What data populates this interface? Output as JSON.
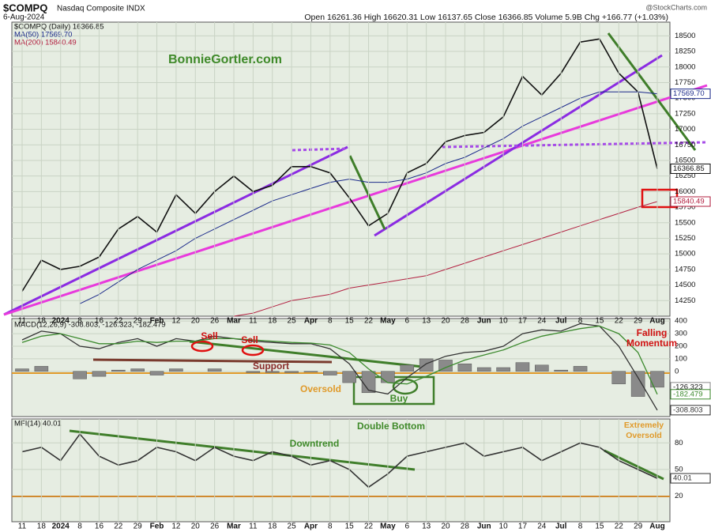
{
  "header": {
    "symbol": "$COMPQ",
    "name": "Nasdaq Composite INDX",
    "date": "6-Aug-2024",
    "quote": "Open 16261.36  High 16620.31  Low 16137.65  Close 16366.85  Volume 5.9B  Chg +166.77 (+1.03%)",
    "watermark": "@StockCharts.com"
  },
  "chart_data": [
    {
      "type": "line",
      "title": "BonnieGortler.com",
      "categories": [
        "11",
        "18",
        "2024",
        "8",
        "16",
        "22",
        "29",
        "Feb",
        "12",
        "20",
        "26",
        "Mar",
        "11",
        "18",
        "25",
        "Apr",
        "8",
        "15",
        "22",
        "May",
        "6",
        "13",
        "20",
        "28",
        "Jun",
        "10",
        "17",
        "24",
        "Jul",
        "8",
        "15",
        "22",
        "29",
        "Aug"
      ],
      "series": [
        {
          "name": "$COMPQ (Daily) 16366.85",
          "color": "#111111",
          "last_label": "16366.85",
          "values": [
            14400,
            14900,
            14750,
            14800,
            14950,
            15400,
            15600,
            15350,
            15950,
            15650,
            16000,
            16250,
            16000,
            16100,
            16400,
            16400,
            16300,
            15900,
            15450,
            15650,
            16300,
            16450,
            16800,
            16900,
            16950,
            17200,
            17850,
            17550,
            17900,
            18400,
            18450,
            17900,
            17600,
            16366.85
          ]
        },
        {
          "name": "MA(50) 17569.70",
          "color": "#1b2a8a",
          "last_label": "17569.70",
          "values": [
            null,
            null,
            null,
            14200,
            14350,
            14550,
            14750,
            14900,
            15050,
            15250,
            15400,
            15550,
            15700,
            15850,
            15950,
            16050,
            16150,
            16200,
            16150,
            16150,
            16200,
            16300,
            16450,
            16550,
            16700,
            16850,
            17050,
            17200,
            17350,
            17500,
            17600,
            17600,
            17600,
            17570
          ]
        },
        {
          "name": "MA(200) 15840.49",
          "color": "#b22040",
          "last_label": "15840.49",
          "values": [
            null,
            null,
            null,
            null,
            null,
            null,
            null,
            null,
            null,
            null,
            null,
            14000,
            14050,
            14150,
            14250,
            14300,
            14350,
            14450,
            14500,
            14550,
            14600,
            14650,
            14750,
            14850,
            14950,
            15050,
            15150,
            15250,
            15350,
            15450,
            15550,
            15650,
            15750,
            15840
          ]
        }
      ],
      "ylim": [
        14000,
        18720
      ],
      "yticks": [
        14250,
        14500,
        14750,
        15000,
        15250,
        15500,
        15750,
        16000,
        16250,
        16500,
        16750,
        17000,
        17250,
        17500,
        17750,
        18000,
        18250,
        18500
      ],
      "grid": true
    },
    {
      "type": "macd",
      "legend": "MACD(12,26,9) -308.803, -126.323, -182.479",
      "series": [
        {
          "name": "MACD",
          "color": "#333333",
          "last_label": "-308.803",
          "values": [
            250,
            320,
            300,
            200,
            180,
            230,
            260,
            200,
            260,
            240,
            280,
            260,
            240,
            230,
            220,
            220,
            180,
            60,
            -150,
            -180,
            -50,
            60,
            120,
            150,
            160,
            200,
            300,
            330,
            320,
            380,
            360,
            200,
            -50,
            -308.8
          ]
        },
        {
          "name": "Signal",
          "color": "#3c8a2e",
          "last_label": "-182.479",
          "values": [
            230,
            280,
            300,
            260,
            220,
            220,
            240,
            230,
            240,
            240,
            260,
            260,
            250,
            240,
            230,
            225,
            210,
            150,
            20,
            -90,
            -100,
            -40,
            30,
            90,
            130,
            170,
            230,
            280,
            310,
            340,
            360,
            300,
            150,
            -182.5
          ]
        }
      ],
      "histogram": {
        "color": "#8a8a8a",
        "last_label": "-126.323",
        "values": [
          20,
          40,
          0,
          -60,
          -40,
          10,
          20,
          -30,
          20,
          0,
          20,
          0,
          -10,
          -10,
          -10,
          -5,
          -30,
          -90,
          -170,
          -90,
          50,
          100,
          90,
          60,
          30,
          30,
          70,
          50,
          10,
          40,
          0,
          -100,
          -200,
          -126.3
        ]
      },
      "ylim": [
        -360,
        420
      ],
      "yticks": [
        0,
        100,
        200,
        300,
        400
      ],
      "grid": true,
      "annotations": [
        "Sell",
        "Sell",
        "Support",
        "Oversold",
        "Buy",
        "Falling Momentum"
      ]
    },
    {
      "type": "line",
      "series": [
        {
          "name": "MFI(14) 40.01",
          "color": "#333333",
          "last_label": "40.01",
          "values": [
            70,
            75,
            60,
            90,
            65,
            55,
            60,
            75,
            70,
            60,
            75,
            65,
            60,
            70,
            65,
            55,
            60,
            50,
            30,
            45,
            65,
            70,
            75,
            80,
            65,
            70,
            75,
            60,
            70,
            80,
            75,
            60,
            50,
            40.01
          ]
        }
      ],
      "ylim": [
        -9,
        107
      ],
      "yticks": [
        20,
        50,
        80
      ],
      "grid": true,
      "annotations": [
        "Double Bottom",
        "Downtrend",
        "Extremely Oversold"
      ]
    }
  ]
}
